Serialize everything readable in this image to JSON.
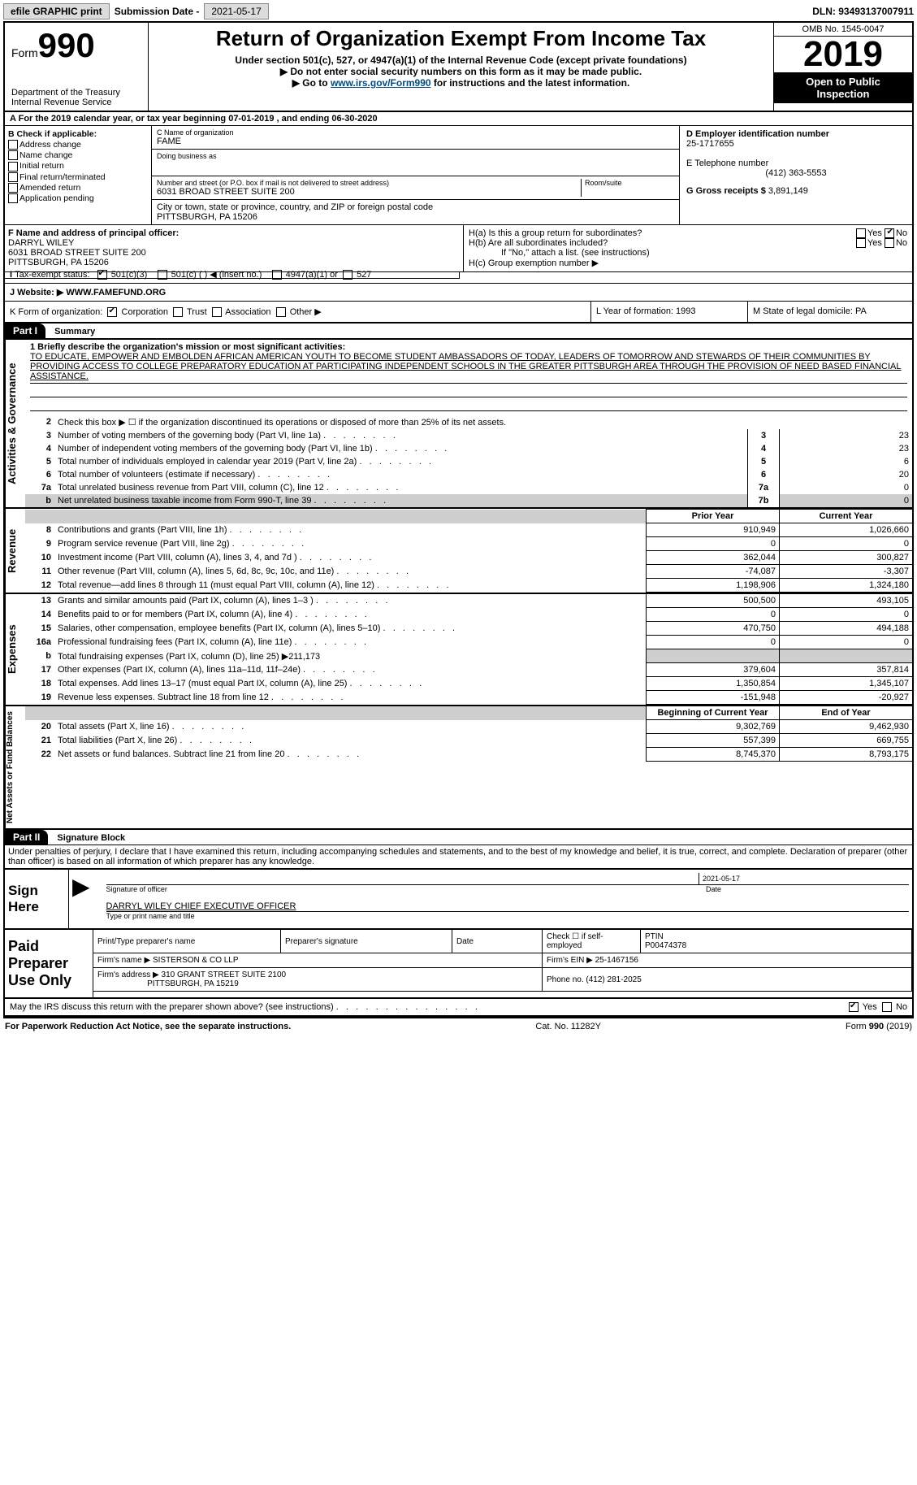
{
  "topbar": {
    "efile_btn": "efile GRAPHIC print",
    "sub_label": "Submission Date -",
    "sub_date": "2021-05-17",
    "dln": "DLN: 93493137007911"
  },
  "header": {
    "form_word": "Form",
    "form_num": "990",
    "dept1": "Department of the Treasury",
    "dept2": "Internal Revenue Service",
    "title": "Return of Organization Exempt From Income Tax",
    "sub1": "Under section 501(c), 527, or 4947(a)(1) of the Internal Revenue Code (except private foundations)",
    "sub2": "▶ Do not enter social security numbers on this form as it may be made public.",
    "sub3_pre": "▶ Go to ",
    "sub3_link": "www.irs.gov/Form990",
    "sub3_post": " for instructions and the latest information.",
    "omb": "OMB No. 1545-0047",
    "year": "2019",
    "open_pub1": "Open to Public",
    "open_pub2": "Inspection"
  },
  "yearrow": "For the 2019 calendar year, or tax year beginning 07-01-2019    , and ending 06-30-2020",
  "secB": {
    "hdr": "B Check if applicable:",
    "items": [
      "Address change",
      "Name change",
      "Initial return",
      "Final return/terminated",
      "Amended return",
      "Application pending"
    ],
    "c_label": "C Name of organization",
    "c_val": "FAME",
    "dba": "Doing business as",
    "addr_label": "Number and street (or P.O. box if mail is not delivered to street address)",
    "addr": "6031 BROAD STREET SUITE 200",
    "room": "Room/suite",
    "city_label": "City or town, state or province, country, and ZIP or foreign postal code",
    "city": "PITTSBURGH, PA   15206",
    "d_label": "D Employer identification number",
    "d_val": "25-1717655",
    "e_label": "E Telephone number",
    "e_val": "(412) 363-5553",
    "g_label": "G Gross receipts $",
    "g_val": "3,891,149"
  },
  "secF": {
    "label": "F  Name and address of principal officer:",
    "name": "DARRYL WILEY",
    "addr1": "6031 BROAD STREET SUITE 200",
    "addr2": "PITTSBURGH, PA  15206"
  },
  "secH": {
    "a": "H(a)  Is this a group return for subordinates?",
    "b": "H(b)  Are all subordinates included?",
    "b_note": "If \"No,\" attach a list. (see instructions)",
    "c": "H(c)  Group exemption number ▶",
    "yes": "Yes",
    "no": "No"
  },
  "taxExempt": {
    "label": "Tax-exempt status:",
    "o1": "501(c)(3)",
    "o2": "501(c) (  ) ◀ (insert no.)",
    "o3": "4947(a)(1) or",
    "o4": "527"
  },
  "website": {
    "label": "J    Website: ▶",
    "val": "WWW.FAMEFUND.ORG"
  },
  "k": {
    "label": "K Form of organization:",
    "o1": "Corporation",
    "o2": "Trust",
    "o3": "Association",
    "o4": "Other ▶",
    "l": "L Year of formation: 1993",
    "m": "M State of legal domicile: PA"
  },
  "part1": {
    "num": "Part I",
    "title": "Summary"
  },
  "mission_label": "1   Briefly describe the organization's mission or most significant activities:",
  "mission": "TO EDUCATE, EMPOWER AND EMBOLDEN AFRICAN AMERICAN YOUTH TO BECOME STUDENT AMBASSADORS OF TODAY, LEADERS OF TOMORROW AND STEWARDS OF THEIR COMMUNITIES BY PROVIDING ACCESS TO COLLEGE PREPARATORY EDUCATION AT PARTICIPATING INDEPENDENT SCHOOLS IN THE GREATER PITTSBURGH AREA THROUGH THE PROVISION OF NEED BASED FINANCIAL ASSISTANCE.",
  "gov_lines": [
    {
      "n": "2",
      "t": "Check this box ▶ ☐  if the organization discontinued its operations or disposed of more than 25% of its net assets."
    },
    {
      "n": "3",
      "t": "Number of voting members of the governing body (Part VI, line 1a)",
      "box": "3",
      "v": "23"
    },
    {
      "n": "4",
      "t": "Number of independent voting members of the governing body (Part VI, line 1b)",
      "box": "4",
      "v": "23"
    },
    {
      "n": "5",
      "t": "Total number of individuals employed in calendar year 2019 (Part V, line 2a)",
      "box": "5",
      "v": "6"
    },
    {
      "n": "6",
      "t": "Total number of volunteers (estimate if necessary)",
      "box": "6",
      "v": "20"
    },
    {
      "n": "7a",
      "t": "Total unrelated business revenue from Part VIII, column (C), line 12",
      "box": "7a",
      "v": "0"
    },
    {
      "n": "b",
      "t": "Net unrelated business taxable income from Form 990-T, line 39",
      "box": "7b",
      "v": "0",
      "shade": true
    }
  ],
  "rev_hdr": {
    "prior": "Prior Year",
    "curr": "Current Year"
  },
  "rev_lines": [
    {
      "n": "8",
      "t": "Contributions and grants (Part VIII, line 1h)",
      "p": "910,949",
      "c": "1,026,660"
    },
    {
      "n": "9",
      "t": "Program service revenue (Part VIII, line 2g)",
      "p": "0",
      "c": "0"
    },
    {
      "n": "10",
      "t": "Investment income (Part VIII, column (A), lines 3, 4, and 7d )",
      "p": "362,044",
      "c": "300,827"
    },
    {
      "n": "11",
      "t": "Other revenue (Part VIII, column (A), lines 5, 6d, 8c, 9c, 10c, and 11e)",
      "p": "-74,087",
      "c": "-3,307"
    },
    {
      "n": "12",
      "t": "Total revenue—add lines 8 through 11 (must equal Part VIII, column (A), line 12)",
      "p": "1,198,906",
      "c": "1,324,180"
    }
  ],
  "exp_lines": [
    {
      "n": "13",
      "t": "Grants and similar amounts paid (Part IX, column (A), lines 1–3 )",
      "p": "500,500",
      "c": "493,105"
    },
    {
      "n": "14",
      "t": "Benefits paid to or for members (Part IX, column (A), line 4)",
      "p": "0",
      "c": "0"
    },
    {
      "n": "15",
      "t": "Salaries, other compensation, employee benefits (Part IX, column (A), lines 5–10)",
      "p": "470,750",
      "c": "494,188"
    },
    {
      "n": "16a",
      "t": "Professional fundraising fees (Part IX, column (A), line 11e)",
      "p": "0",
      "c": "0"
    },
    {
      "n": "b",
      "t": "Total fundraising expenses (Part IX, column (D), line 25) ▶211,173",
      "p": "",
      "c": "",
      "shade": true,
      "nodots": true
    },
    {
      "n": "17",
      "t": "Other expenses (Part IX, column (A), lines 11a–11d, 11f–24e)",
      "p": "379,604",
      "c": "357,814"
    },
    {
      "n": "18",
      "t": "Total expenses. Add lines 13–17 (must equal Part IX, column (A), line 25)",
      "p": "1,350,854",
      "c": "1,345,107"
    },
    {
      "n": "19",
      "t": "Revenue less expenses. Subtract line 18 from line 12",
      "p": "-151,948",
      "c": "-20,927"
    }
  ],
  "na_hdr": {
    "beg": "Beginning of Current Year",
    "end": "End of Year"
  },
  "na_lines": [
    {
      "n": "20",
      "t": "Total assets (Part X, line 16)",
      "p": "9,302,769",
      "c": "9,462,930"
    },
    {
      "n": "21",
      "t": "Total liabilities (Part X, line 26)",
      "p": "557,399",
      "c": "669,755"
    },
    {
      "n": "22",
      "t": "Net assets or fund balances. Subtract line 21 from line 20",
      "p": "8,745,370",
      "c": "8,793,175"
    }
  ],
  "side_labels": {
    "gov": "Activities & Governance",
    "rev": "Revenue",
    "exp": "Expenses",
    "na": "Net Assets or Fund Balances"
  },
  "part2": {
    "num": "Part II",
    "title": "Signature Block"
  },
  "perjury": "Under penalties of perjury, I declare that I have examined this return, including accompanying schedules and statements, and to the best of my knowledge and belief, it is true, correct, and complete. Declaration of preparer (other than officer) is based on all information of which preparer has any knowledge.",
  "sign": {
    "here": "Sign Here",
    "sig_of_officer": "Signature of officer",
    "date": "Date",
    "date_val": "2021-05-17",
    "name_title": "DARRYL WILEY CHIEF EXECUTIVE OFFICER",
    "name_lab": "Type or print name and title"
  },
  "paid": {
    "title": "Paid Preparer Use Only",
    "h1": "Print/Type preparer's name",
    "h2": "Preparer's signature",
    "h3": "Date",
    "h4a": "Check ☐ if self-employed",
    "h4b": "PTIN",
    "ptin": "P00474378",
    "firm_name_l": "Firm's name    ▶",
    "firm_name": "SISTERSON & CO LLP",
    "firm_ein_l": "Firm's EIN ▶",
    "firm_ein": "25-1467156",
    "firm_addr_l": "Firm's address ▶",
    "firm_addr1": "310 GRANT STREET SUITE 2100",
    "firm_addr2": "PITTSBURGH, PA  15219",
    "phone_l": "Phone no.",
    "phone": "(412) 281-2025"
  },
  "discuss": "May the IRS discuss this return with the preparer shown above? (see instructions)",
  "footer": {
    "l": "For Paperwork Reduction Act Notice, see the separate instructions.",
    "c": "Cat. No. 11282Y",
    "r": "Form 990 (2019)"
  }
}
